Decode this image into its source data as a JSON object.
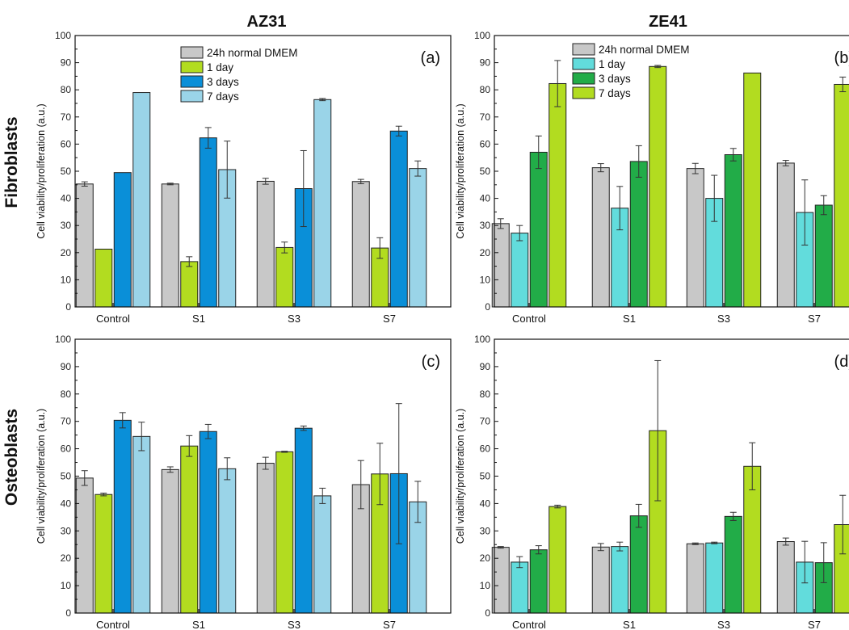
{
  "column_titles": [
    "AZ31",
    "ZE41"
  ],
  "row_titles": [
    "Fibroblasts",
    "Osteoblasts"
  ],
  "colors": {
    "gray": "#c8c8c8",
    "lime": "#b2dc20",
    "blue": "#0a8fd8",
    "lightblue": "#9ad4e8",
    "cyan": "#62dcdc",
    "green": "#22ac48"
  },
  "chart_data": [
    {
      "type": "bar",
      "panel_label": "(a)",
      "categories": [
        "Control",
        "S1",
        "S3",
        "S7"
      ],
      "ylabel": "Cell viability/proliferation (a.u.)",
      "ylim": [
        0,
        100
      ],
      "yticks": [
        0,
        10,
        20,
        30,
        40,
        50,
        60,
        70,
        80,
        90,
        100
      ],
      "legend": "top-center",
      "series": [
        {
          "name": "24h normal DMEM",
          "color": "#c8c8c8",
          "values": [
            45.3,
            45.3,
            46.3,
            46.2
          ],
          "errors": [
            0.8,
            0.3,
            1.1,
            0.8
          ]
        },
        {
          "name": "1 day",
          "color": "#b2dc20",
          "values": [
            21.3,
            16.7,
            21.9,
            21.7
          ],
          "errors": [
            0,
            1.8,
            2.0,
            3.8
          ]
        },
        {
          "name": "3 days",
          "color": "#0a8fd8",
          "values": [
            49.5,
            62.3,
            43.6,
            64.8
          ],
          "errors": [
            0,
            3.8,
            14.0,
            1.8
          ]
        },
        {
          "name": "7 days",
          "color": "#9ad4e8",
          "values": [
            79.0,
            50.6,
            76.4,
            51.0
          ],
          "errors": [
            0,
            10.5,
            0.4,
            2.8
          ]
        }
      ]
    },
    {
      "type": "bar",
      "panel_label": "(b)",
      "categories": [
        "Control",
        "S1",
        "S3",
        "S7"
      ],
      "ylabel": "Cell viability/proliferation (a.u.)",
      "ylim": [
        0,
        100
      ],
      "yticks": [
        0,
        10,
        20,
        30,
        40,
        50,
        60,
        70,
        80,
        90,
        100
      ],
      "legend": "top-center",
      "series": [
        {
          "name": "24h normal DMEM",
          "color": "#c8c8c8",
          "values": [
            30.7,
            51.3,
            51.0,
            53.0
          ],
          "errors": [
            1.8,
            1.5,
            1.9,
            1.0
          ]
        },
        {
          "name": "1 day",
          "color": "#62dcdc",
          "values": [
            27.2,
            36.4,
            40.0,
            34.8
          ],
          "errors": [
            2.8,
            8.0,
            8.5,
            12.0
          ]
        },
        {
          "name": "3 days",
          "color": "#22ac48",
          "values": [
            57.0,
            53.6,
            56.1,
            37.5
          ],
          "errors": [
            6.0,
            5.8,
            2.3,
            3.5
          ]
        },
        {
          "name": "7 days",
          "color": "#b2dc20",
          "values": [
            82.3,
            88.6,
            86.2,
            82.0
          ],
          "errors": [
            8.5,
            0.4,
            0,
            2.7
          ]
        }
      ]
    },
    {
      "type": "bar",
      "panel_label": "(c)",
      "categories": [
        "Control",
        "S1",
        "S3",
        "S7"
      ],
      "ylabel": "Cell viability/proliferation (a.u.)",
      "ylim": [
        0,
        100
      ],
      "yticks": [
        0,
        10,
        20,
        30,
        40,
        50,
        60,
        70,
        80,
        90,
        100
      ],
      "series": [
        {
          "name": "24h normal DMEM",
          "color": "#c8c8c8",
          "values": [
            49.3,
            52.4,
            54.7,
            46.9
          ],
          "errors": [
            2.7,
            1.0,
            2.2,
            8.8
          ]
        },
        {
          "name": "1 day",
          "color": "#b2dc20",
          "values": [
            43.3,
            61.0,
            58.9,
            50.8
          ],
          "errors": [
            0.5,
            3.8,
            0.2,
            11.2
          ]
        },
        {
          "name": "3 days",
          "color": "#0a8fd8",
          "values": [
            70.4,
            66.3,
            67.5,
            50.9
          ],
          "errors": [
            2.8,
            2.6,
            0.8,
            25.6
          ]
        },
        {
          "name": "7 days",
          "color": "#9ad4e8",
          "values": [
            64.5,
            52.7,
            42.8,
            40.6
          ],
          "errors": [
            5.2,
            4.0,
            2.8,
            7.5
          ]
        }
      ]
    },
    {
      "type": "bar",
      "panel_label": "(d)",
      "categories": [
        "Control",
        "S1",
        "S3",
        "S7"
      ],
      "ylabel": "Cell viability/proliferation (a.u.)",
      "ylim": [
        0,
        100
      ],
      "yticks": [
        0,
        10,
        20,
        30,
        40,
        50,
        60,
        70,
        80,
        90,
        100
      ],
      "series": [
        {
          "name": "24h normal DMEM",
          "color": "#c8c8c8",
          "values": [
            24.0,
            24.1,
            25.3,
            26.1
          ],
          "errors": [
            0.3,
            1.3,
            0.3,
            1.3
          ]
        },
        {
          "name": "1 day",
          "color": "#62dcdc",
          "values": [
            18.6,
            24.3,
            25.6,
            18.6
          ],
          "errors": [
            2.0,
            1.6,
            0.3,
            7.6
          ]
        },
        {
          "name": "3 days",
          "color": "#22ac48",
          "values": [
            23.1,
            35.5,
            35.3,
            18.4
          ],
          "errors": [
            1.5,
            4.2,
            1.5,
            7.3
          ]
        },
        {
          "name": "7 days",
          "color": "#b2dc20",
          "values": [
            38.9,
            66.6,
            53.6,
            32.3
          ],
          "errors": [
            0.5,
            25.6,
            8.6,
            10.7
          ]
        }
      ]
    }
  ]
}
